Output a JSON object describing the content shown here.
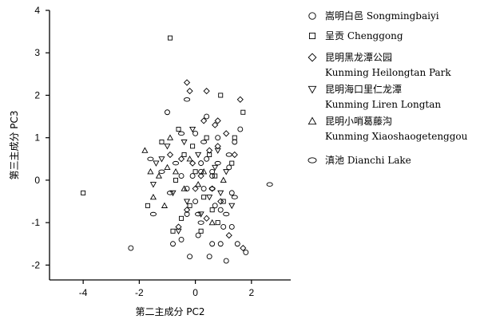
{
  "chart_data": {
    "type": "scatter",
    "xlabel": "第二主成分 PC2",
    "ylabel": "第三主成分 PC3",
    "xlim": [
      -5.2,
      3.4
    ],
    "ylim": [
      -2.35,
      4
    ],
    "xticks": [
      -4,
      -2,
      0,
      2
    ],
    "yticks": [
      -2,
      -1,
      0,
      1,
      2,
      3,
      4
    ],
    "grid": false,
    "legend_position": "right",
    "series": [
      {
        "name": "嵩明白邑 Songmingbaiyi",
        "marker": "circle",
        "points": [
          [
            -2.3,
            -1.6
          ],
          [
            -1.0,
            1.6
          ],
          [
            -0.8,
            -1.5
          ],
          [
            -0.5,
            -1.4
          ],
          [
            -0.3,
            -0.8
          ],
          [
            -0.2,
            -1.8
          ],
          [
            0.0,
            1.1
          ],
          [
            0.1,
            -1.3
          ],
          [
            0.2,
            0.4
          ],
          [
            0.3,
            -0.2
          ],
          [
            0.4,
            1.5
          ],
          [
            0.5,
            -1.8
          ],
          [
            0.6,
            -1.5
          ],
          [
            0.6,
            0.1
          ],
          [
            0.7,
            -0.6
          ],
          [
            0.8,
            1.0
          ],
          [
            0.9,
            -1.5
          ],
          [
            1.1,
            -1.9
          ],
          [
            1.2,
            0.3
          ],
          [
            1.3,
            -1.1
          ],
          [
            1.4,
            0.9
          ],
          [
            1.5,
            -1.5
          ],
          [
            1.6,
            1.2
          ],
          [
            1.8,
            -1.7
          ],
          [
            0.9,
            -0.7
          ],
          [
            1.0,
            -1.1
          ],
          [
            0.2,
            0.2
          ],
          [
            -0.1,
            0.1
          ],
          [
            0.4,
            0.5
          ],
          [
            0.6,
            0.2
          ],
          [
            1.3,
            -0.3
          ],
          [
            -0.3,
            -0.2
          ],
          [
            -0.5,
            0.1
          ],
          [
            0.0,
            -0.5
          ]
        ]
      },
      {
        "name": "呈贡 Chenggong",
        "marker": "square",
        "points": [
          [
            -4.0,
            -0.3
          ],
          [
            -0.9,
            3.35
          ],
          [
            -1.7,
            -0.6
          ],
          [
            -0.6,
            1.2
          ],
          [
            -0.8,
            -1.2
          ],
          [
            -0.4,
            0.6
          ],
          [
            0.3,
            -0.4
          ],
          [
            0.9,
            2.0
          ],
          [
            1.7,
            1.6
          ],
          [
            0.5,
            0.6
          ],
          [
            -0.7,
            0.0
          ],
          [
            0.0,
            0.2
          ],
          [
            -1.2,
            0.9
          ],
          [
            0.2,
            -1.2
          ],
          [
            0.7,
            0.1
          ],
          [
            -0.2,
            -0.6
          ],
          [
            0.4,
            1.0
          ],
          [
            1.0,
            -0.5
          ],
          [
            1.4,
            1.0
          ],
          [
            -0.1,
            0.8
          ],
          [
            0.8,
            -1.0
          ],
          [
            -0.5,
            -0.9
          ],
          [
            1.3,
            0.4
          ],
          [
            0.6,
            -0.7
          ]
        ]
      },
      {
        "name": "昆明黑龙潭公园 Kunming Heilongtan Park",
        "marker": "diamond",
        "points": [
          [
            -0.3,
            2.3
          ],
          [
            -0.2,
            2.1
          ],
          [
            0.4,
            2.1
          ],
          [
            1.6,
            1.9
          ],
          [
            0.7,
            1.3
          ],
          [
            1.1,
            1.1
          ],
          [
            0.3,
            1.4
          ],
          [
            0.5,
            0.7
          ],
          [
            0.8,
            0.8
          ],
          [
            1.4,
            0.6
          ],
          [
            -0.5,
            0.5
          ],
          [
            -0.1,
            0.4
          ],
          [
            0.2,
            0.1
          ],
          [
            0.0,
            -0.2
          ],
          [
            0.6,
            -0.2
          ],
          [
            0.9,
            -0.5
          ],
          [
            -0.3,
            -0.7
          ],
          [
            1.2,
            -1.3
          ],
          [
            -0.6,
            -1.1
          ],
          [
            0.4,
            -0.9
          ],
          [
            1.7,
            -1.6
          ],
          [
            0.8,
            1.4
          ],
          [
            -0.9,
            0.6
          ]
        ]
      },
      {
        "name": "昆明海口里仁龙潭 Kunming Liren Longtan",
        "marker": "triangle-down",
        "points": [
          [
            -1.4,
            0.4
          ],
          [
            -1.0,
            0.8
          ],
          [
            -0.4,
            0.9
          ],
          [
            0.8,
            0.7
          ],
          [
            1.1,
            0.2
          ],
          [
            -0.8,
            -0.3
          ],
          [
            -0.3,
            -0.5
          ],
          [
            0.5,
            -0.4
          ],
          [
            1.3,
            -0.6
          ],
          [
            -1.5,
            -0.1
          ],
          [
            0.1,
            0.6
          ],
          [
            -0.6,
            -1.2
          ],
          [
            0.9,
            -0.3
          ],
          [
            -1.2,
            0.5
          ],
          [
            0.2,
            -0.8
          ],
          [
            0.7,
            0.3
          ],
          [
            -0.1,
            1.2
          ]
        ]
      },
      {
        "name": "昆明小哨葛藤沟 Kunming Xiaoshaogetenggou",
        "marker": "triangle-up",
        "points": [
          [
            -1.8,
            0.7
          ],
          [
            -1.6,
            0.2
          ],
          [
            -1.3,
            0.1
          ],
          [
            -1.0,
            0.3
          ],
          [
            -0.7,
            0.2
          ],
          [
            -0.4,
            -0.2
          ],
          [
            -1.1,
            -0.6
          ],
          [
            0.1,
            -0.1
          ],
          [
            0.3,
            0.2
          ],
          [
            -0.9,
            1.0
          ],
          [
            0.6,
            -1.0
          ],
          [
            -0.2,
            0.5
          ],
          [
            1.0,
            0.0
          ],
          [
            -1.5,
            -0.4
          ]
        ]
      },
      {
        "name": "滇池 Dianchi Lake",
        "marker": "ellipse",
        "points": [
          [
            2.65,
            -0.1
          ],
          [
            -1.5,
            -0.8
          ],
          [
            -1.2,
            0.2
          ],
          [
            -0.9,
            -0.3
          ],
          [
            -0.3,
            1.9
          ],
          [
            0.1,
            -0.8
          ],
          [
            0.3,
            0.9
          ],
          [
            0.6,
            -0.2
          ],
          [
            1.1,
            -0.8
          ],
          [
            1.4,
            -0.4
          ],
          [
            -0.5,
            1.1
          ],
          [
            0.8,
            0.4
          ],
          [
            -1.6,
            0.5
          ],
          [
            -0.7,
            0.4
          ],
          [
            0.2,
            -1.0
          ],
          [
            1.2,
            0.6
          ]
        ]
      }
    ]
  }
}
